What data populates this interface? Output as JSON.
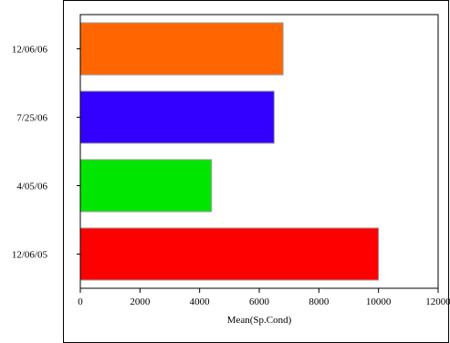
{
  "chart_data": {
    "type": "bar",
    "orientation": "horizontal",
    "title": "",
    "xlabel": "Mean(Sp.Cond)",
    "ylabel": "",
    "categories": [
      "12/06/05",
      "4/05/06",
      "7/25/06",
      "12/06/06"
    ],
    "values": [
      10000,
      4400,
      6500,
      6800
    ],
    "colors": [
      "#ff0000",
      "#00e600",
      "#3300ff",
      "#ff6600"
    ],
    "xlim": [
      0,
      12000
    ],
    "xticks": [
      0,
      2000,
      4000,
      6000,
      8000,
      10000,
      12000
    ],
    "grid": false,
    "legend": "none"
  }
}
